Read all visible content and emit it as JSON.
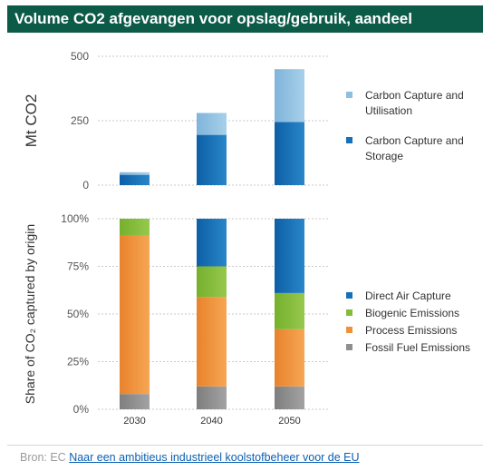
{
  "title": "Volume CO2 afgevangen voor opslag/gebruik, aandeel",
  "source": {
    "prefix": "Bron: EC",
    "link_text": "Naar een ambitieus industrieel koolstofbeheer voor de EU"
  },
  "colors": {
    "title_bg": "#0c5a48",
    "carbon_capture_utilisation": "#8dbfe0",
    "carbon_capture_storage": "#1670b7",
    "direct_air_capture": "#1670b7",
    "biogenic_emissions": "#84bc3a",
    "process_emissions": "#f0913a",
    "fossil_fuel_emissions": "#8f8f8f"
  },
  "chart_data": [
    {
      "type": "bar",
      "stacked": true,
      "ylabel": "Mt CO2",
      "ylim": [
        0,
        500
      ],
      "yticks": [
        "0",
        "250",
        "500"
      ],
      "categories": [
        "2030",
        "2040",
        "2050"
      ],
      "series": [
        {
          "name": "Carbon Capture and Storage",
          "values": [
            40,
            195,
            245
          ]
        },
        {
          "name": "Carbon Capture and Utilisation",
          "values": [
            10,
            85,
            205
          ]
        }
      ],
      "legend": [
        "Carbon Capture and Utilisation",
        "Carbon Capture and Storage"
      ],
      "legend_position": "right"
    },
    {
      "type": "bar",
      "stacked": true,
      "ylabel": "Share of CO₂ captured by origin",
      "ylim": [
        0,
        100
      ],
      "yticks": [
        "0%",
        "25%",
        "50%",
        "75%",
        "100%"
      ],
      "categories": [
        "2030",
        "2040",
        "2050"
      ],
      "series": [
        {
          "name": "Fossil Fuel Emissions",
          "values": [
            8,
            12,
            12
          ]
        },
        {
          "name": "Process Emissions",
          "values": [
            83,
            47,
            30
          ]
        },
        {
          "name": "Biogenic Emissions",
          "values": [
            9,
            16,
            19
          ]
        },
        {
          "name": "Direct Air Capture",
          "values": [
            0,
            25,
            39
          ]
        }
      ],
      "legend": [
        "Direct Air Capture",
        "Biogenic Emissions",
        "Process Emissions",
        "Fossil Fuel Emissions"
      ],
      "legend_position": "right"
    }
  ]
}
